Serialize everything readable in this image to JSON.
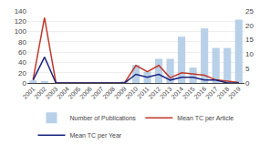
{
  "chart_data": {
    "type": "bar",
    "categories": [
      "2001",
      "2002",
      "2003",
      "2004",
      "2005",
      "2006",
      "2007",
      "2008",
      "2009",
      "2010",
      "2011",
      "2012",
      "2013",
      "2014",
      "2015",
      "2016",
      "2017",
      "2018",
      "2019"
    ],
    "series": [
      {
        "name": "Number of Publications",
        "type": "bar",
        "color": "#b8d0e8",
        "values": [
          5,
          2,
          0,
          0,
          0,
          0,
          0,
          0,
          2,
          35,
          22,
          47,
          47,
          90,
          30,
          106,
          68,
          68,
          123
        ]
      },
      {
        "name": "Mean TC per Article",
        "type": "line",
        "color": "#c0392b",
        "values": [
          7,
          127,
          0,
          0,
          0,
          0,
          0,
          0,
          0,
          34,
          22,
          34,
          10,
          20,
          18,
          15,
          6,
          3,
          1
        ]
      },
      {
        "name": "Mean TC per Year",
        "type": "line",
        "color": "#1a237e",
        "axis": "y2",
        "values": [
          1,
          9,
          0,
          0,
          0,
          0,
          0,
          0,
          0,
          3,
          2,
          3,
          1,
          2,
          2,
          1,
          1,
          0,
          0
        ]
      }
    ],
    "ylim": [
      0,
      140
    ],
    "yticks": [
      0,
      20,
      40,
      60,
      80,
      100,
      120,
      140
    ],
    "y2lim": [
      0,
      25
    ],
    "y2ticks": [
      0,
      5,
      10,
      15,
      20,
      25
    ],
    "grid": true,
    "legend": "bottom"
  }
}
